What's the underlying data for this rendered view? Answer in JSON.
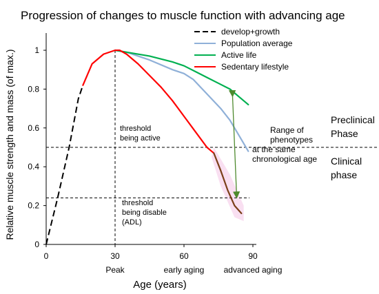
{
  "chart_data": {
    "type": "line",
    "title": "Progression of  changes to muscle function with advancing age",
    "xlabel": "Age (years)",
    "ylabel": "Relative muscle strength and mass (of max.)",
    "xlim": [
      0,
      90
    ],
    "ylim": [
      0,
      1.1
    ],
    "xticks": [
      {
        "value": 0,
        "label": "0",
        "sublabel": ""
      },
      {
        "value": 30,
        "label": "30",
        "sublabel": "Peak"
      },
      {
        "value": 60,
        "label": "60",
        "sublabel": "early aging"
      },
      {
        "value": 90,
        "label": "90",
        "sublabel": "advanced aging"
      }
    ],
    "yticks": [
      {
        "value": 0,
        "label": "0"
      },
      {
        "value": 0.2,
        "label": "0.2"
      },
      {
        "value": 0.4,
        "label": "0.4"
      },
      {
        "value": 0.6,
        "label": "0.6"
      },
      {
        "value": 0.8,
        "label": "0.8"
      },
      {
        "value": 1,
        "label": "1"
      }
    ],
    "grid": false,
    "legend_position": "top-right",
    "series": [
      {
        "name": "develop+growth",
        "color": "#000000",
        "dash": true,
        "x": [
          0,
          5,
          10,
          14,
          16
        ],
        "y": [
          0,
          0.24,
          0.5,
          0.75,
          0.82
        ]
      },
      {
        "name": "Population average",
        "color": "#8fb0d8",
        "dash": false,
        "x": [
          30,
          35,
          45,
          55,
          60,
          64,
          68,
          72,
          76,
          80,
          84,
          88
        ],
        "y": [
          1.0,
          0.99,
          0.95,
          0.9,
          0.88,
          0.85,
          0.8,
          0.75,
          0.7,
          0.64,
          0.56,
          0.48
        ]
      },
      {
        "name": "Active life",
        "color": "#00b050",
        "dash": false,
        "x": [
          30,
          35,
          45,
          55,
          60,
          65,
          70,
          75,
          80,
          84,
          88
        ],
        "y": [
          1.0,
          0.99,
          0.97,
          0.94,
          0.92,
          0.89,
          0.86,
          0.83,
          0.8,
          0.76,
          0.72
        ]
      },
      {
        "name": "Sedentary lifestyle",
        "color": "#ff0000",
        "dash": false,
        "x": [
          16,
          20,
          25,
          30,
          32,
          35,
          40,
          45,
          50,
          55,
          60,
          65,
          70,
          73
        ],
        "y": [
          0.82,
          0.93,
          0.98,
          1.0,
          1.0,
          0.98,
          0.93,
          0.87,
          0.81,
          0.74,
          0.66,
          0.58,
          0.5,
          0.47
        ]
      },
      {
        "name": "",
        "color": "#7b3f19",
        "dash": false,
        "x": [
          73,
          76,
          79,
          82,
          85
        ],
        "y": [
          0.47,
          0.38,
          0.28,
          0.2,
          0.16
        ]
      }
    ],
    "thresholds": [
      {
        "value": 0.5,
        "label_lines": [
          "threshold",
          "being active"
        ]
      },
      {
        "value": 0.24,
        "label_lines": [
          "threshold",
          "being disable",
          "(ADL)"
        ]
      }
    ],
    "peak_line_x": 30,
    "range_arrow": {
      "x": 82,
      "y_top": 0.79,
      "y_bottom": 0.24,
      "color": "#4e8a2e",
      "label_lines": [
        "Range of",
        "phenotypes",
        "at the same",
        "chronological age"
      ]
    },
    "phases": [
      {
        "label_lines": [
          "Preclinical",
          "Phase"
        ]
      },
      {
        "label_lines": [
          "Clinical",
          "phase"
        ]
      }
    ]
  }
}
